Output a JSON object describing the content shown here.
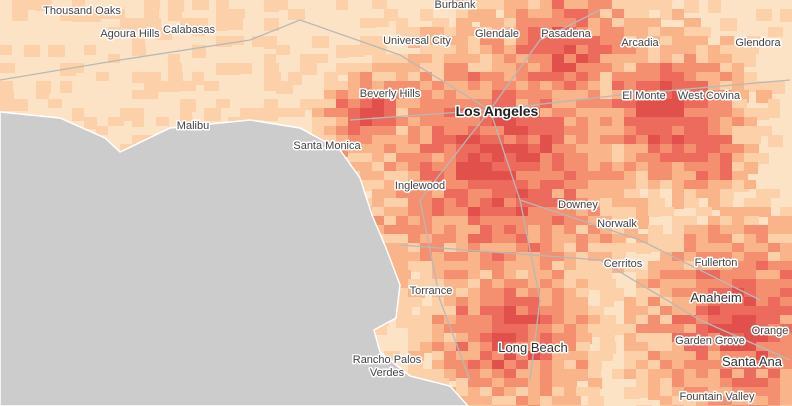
{
  "places": [
    "Thousand Oaks",
    "Agoura Hills",
    "Calabasas",
    "Burbank",
    "Universal City",
    "Glendale",
    "Pasadena",
    "Arcadia",
    "Glendora",
    "Beverly Hills",
    "Los Angeles",
    "El Monte",
    "West Covina",
    "Malibu",
    "Santa Monica",
    "Inglewood",
    "Downey",
    "Norwalk",
    "Cerritos",
    "Fullerton",
    "Anaheim",
    "Torrance",
    "Orange",
    "Garden Grove",
    "Santa Ana",
    "Long Beach",
    "Fountain Valley"
  ],
  "multi_line_places": [
    [
      "Rancho Palos",
      "Verdes"
    ]
  ]
}
